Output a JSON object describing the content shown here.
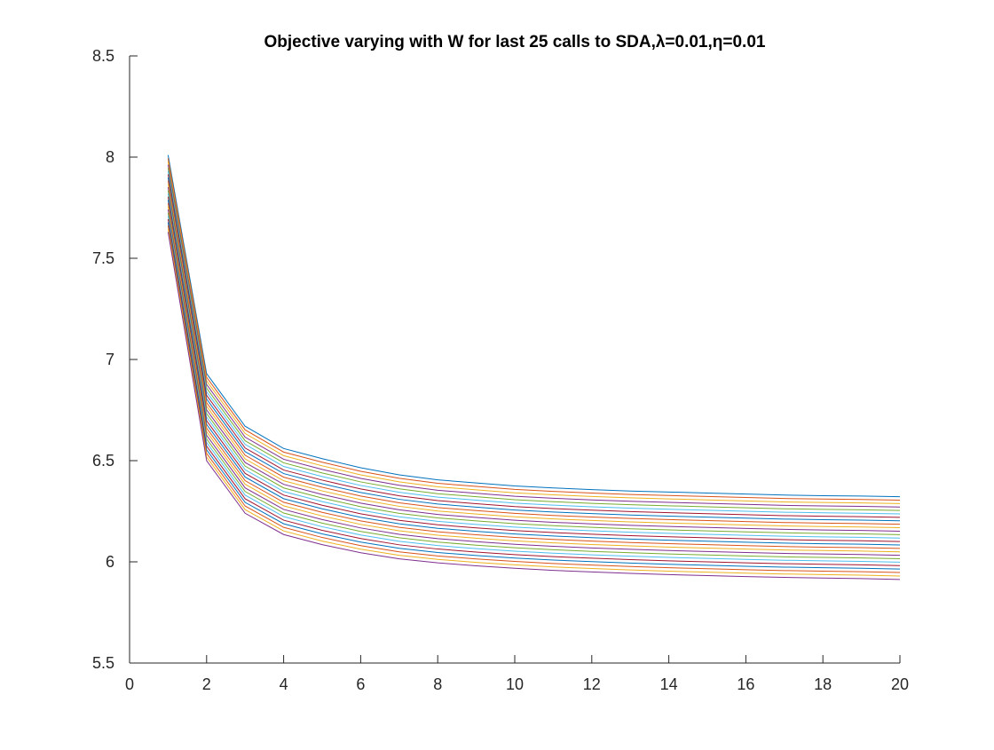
{
  "chart_data": {
    "type": "line",
    "title": "Objective varying with W for last 25 calls to SDA,λ=0.01,η=0.01",
    "xlabel": "",
    "ylabel": "",
    "xlim": [
      0,
      20
    ],
    "ylim": [
      5.5,
      8.5
    ],
    "xticks": [
      0,
      2,
      4,
      6,
      8,
      10,
      12,
      14,
      16,
      18,
      20
    ],
    "yticks": [
      5.5,
      6,
      6.5,
      7,
      7.5,
      8,
      8.5
    ],
    "x": [
      1,
      2,
      3,
      4,
      5,
      6,
      7,
      8,
      9,
      10,
      11,
      12,
      13,
      14,
      15,
      16,
      17,
      18,
      19,
      20
    ],
    "grid": false,
    "legend": "none",
    "num_series": 25,
    "top_series": [
      8.01,
      6.93,
      6.67,
      6.56,
      6.51,
      6.465,
      6.43,
      6.405,
      6.39,
      6.375,
      6.365,
      6.357,
      6.35,
      6.345,
      6.34,
      6.335,
      6.33,
      6.327,
      6.325,
      6.322
    ],
    "bottom_series": [
      7.63,
      6.5,
      6.24,
      6.135,
      6.085,
      6.045,
      6.015,
      5.995,
      5.98,
      5.968,
      5.958,
      5.95,
      5.943,
      5.937,
      5.932,
      5.927,
      5.923,
      5.92,
      5.917,
      5.913
    ],
    "series_colors": [
      "#0072BD",
      "#D95319",
      "#EDB120",
      "#7E2F8E",
      "#77AC30",
      "#4DBEEE",
      "#A2142F"
    ]
  }
}
